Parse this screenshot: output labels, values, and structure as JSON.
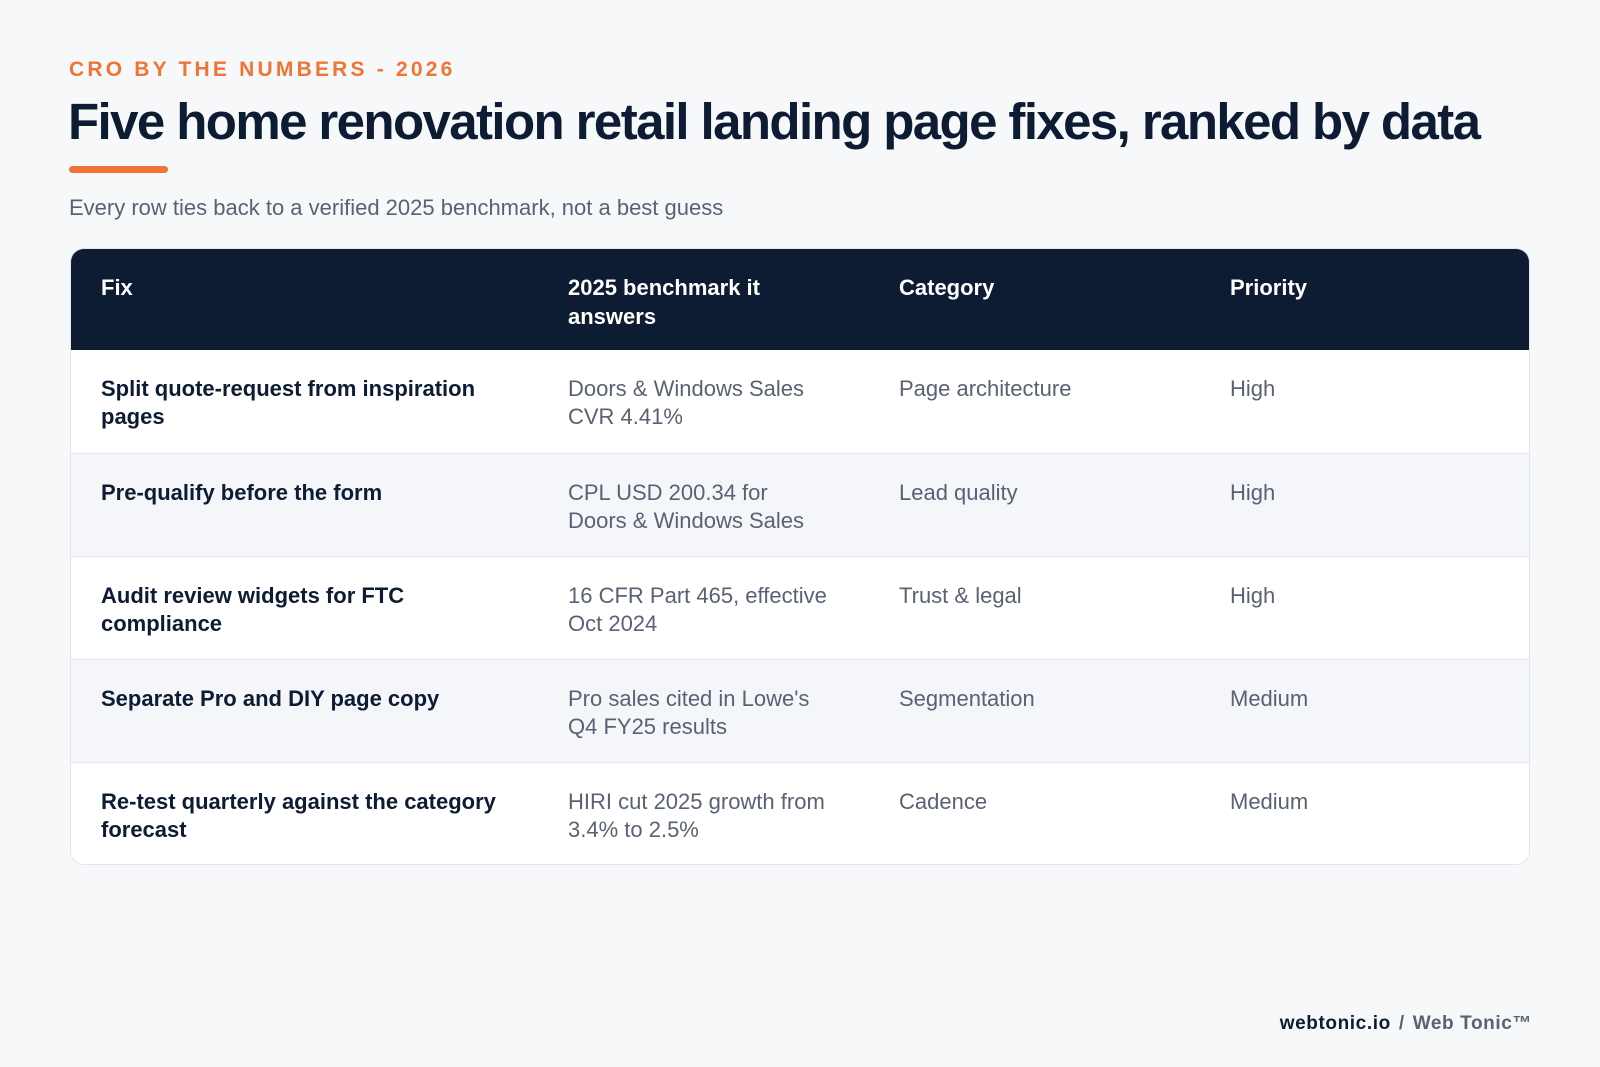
{
  "header": {
    "eyebrow": "CRO BY THE NUMBERS - 2026",
    "title": "Five home renovation retail landing page fixes, ranked by data",
    "subtitle": "Every row ties back to a verified 2025 benchmark, not a best guess"
  },
  "table": {
    "columns": [
      "Fix",
      "2025 benchmark it answers",
      "Category",
      "Priority"
    ],
    "rows": [
      {
        "fix": "Split quote-request from inspiration pages",
        "benchmark": "Doors & Windows Sales CVR 4.41%",
        "category": "Page architecture",
        "priority": "High"
      },
      {
        "fix": "Pre-qualify before the form",
        "benchmark": "CPL USD 200.34 for Doors & Windows Sales",
        "category": "Lead quality",
        "priority": "High"
      },
      {
        "fix": "Audit review widgets for FTC compliance",
        "benchmark": "16 CFR Part 465, effective Oct 2024",
        "category": "Trust & legal",
        "priority": "High"
      },
      {
        "fix": "Separate Pro and DIY page copy",
        "benchmark": "Pro sales cited in Lowe's Q4 FY25 results",
        "category": "Segmentation",
        "priority": "Medium"
      },
      {
        "fix": "Re-test quarterly against the category forecast",
        "benchmark": "HIRI cut 2025 growth from 3.4% to 2.5%",
        "category": "Cadence",
        "priority": "Medium"
      }
    ]
  },
  "footer": {
    "domain": "webtonic.io",
    "separator": "/",
    "brand": "Web Tonic™"
  },
  "colors": {
    "accent": "#f07534",
    "navy": "#0d1b33",
    "muted": "#596273",
    "background": "#f6f8fa"
  }
}
